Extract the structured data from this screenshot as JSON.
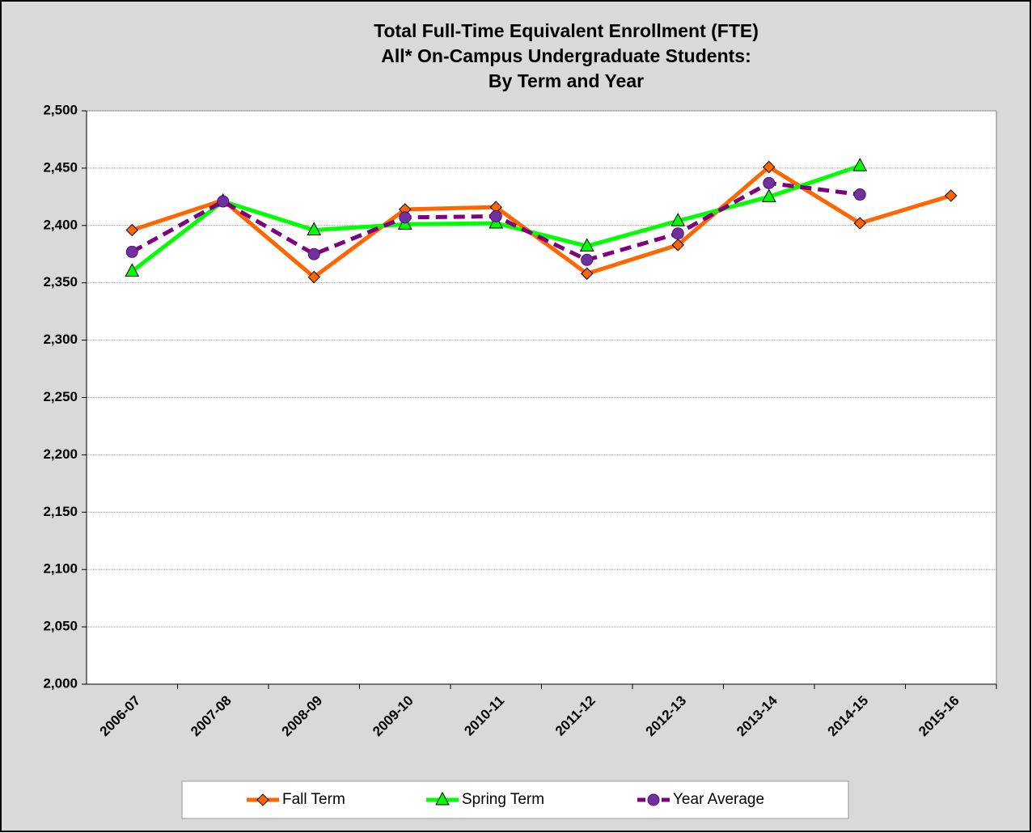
{
  "chart_data": {
    "type": "line",
    "title": [
      "Total Full-Time Equivalent Enrollment  (FTE)",
      "All* On-Campus  Undergraduate  Students:",
      "By Term and Year"
    ],
    "categories": [
      "2006-07",
      "2007-08",
      "2008-09",
      "2009-10",
      "2010-11",
      "2011-12",
      "2012-13",
      "2013-14",
      "2014-15",
      "2015-16"
    ],
    "series": [
      {
        "name": "Fall Term",
        "color": "#ff6600",
        "marker": "diamond",
        "dashed": false,
        "values": [
          2396,
          2422,
          2355,
          2414,
          2416,
          2358,
          2383,
          2451,
          2402,
          2426
        ]
      },
      {
        "name": "Spring Term",
        "color": "#00ff00",
        "marker": "triangle",
        "dashed": false,
        "values": [
          2360,
          2421,
          2396,
          2401,
          2402,
          2382,
          2404,
          2425,
          2452,
          null
        ]
      },
      {
        "name": "Year Average",
        "color": "#7f007f",
        "marker": "circle",
        "dashed": true,
        "values": [
          2377,
          2421,
          2375,
          2407,
          2408,
          2370,
          2393,
          2437,
          2427,
          null
        ]
      }
    ],
    "ylim": [
      2000,
      2500
    ],
    "yticks": [
      {
        "value": 2000,
        "label": "2,000"
      },
      {
        "value": 2050,
        "label": "2,050"
      },
      {
        "value": 2100,
        "label": "2,100"
      },
      {
        "value": 2150,
        "label": "2,150"
      },
      {
        "value": 2200,
        "label": "2,200"
      },
      {
        "value": 2250,
        "label": "2,250"
      },
      {
        "value": 2300,
        "label": "2,300"
      },
      {
        "value": 2350,
        "label": "2,350"
      },
      {
        "value": 2400,
        "label": "2,400"
      },
      {
        "value": 2450,
        "label": "2,450"
      },
      {
        "value": 2500,
        "label": "2,500"
      }
    ],
    "grid": true,
    "legend": "bottom"
  }
}
